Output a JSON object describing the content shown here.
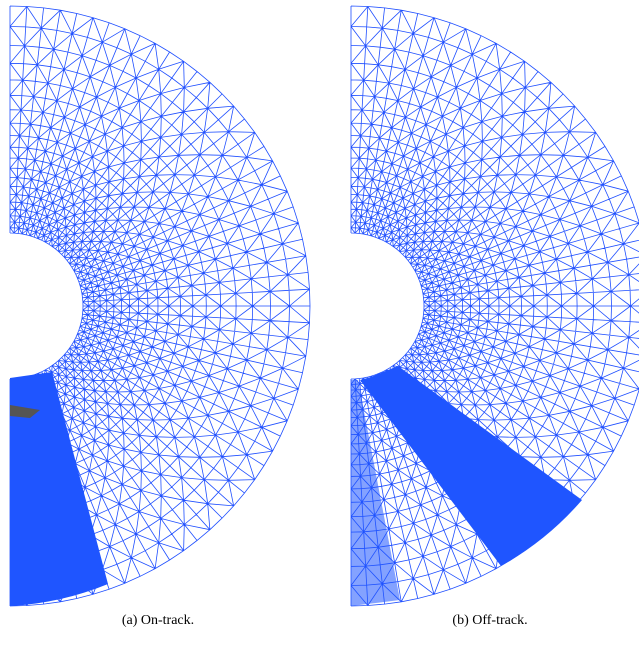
{
  "panels": [
    {
      "caption": "(a) On-track."
    },
    {
      "caption": "(b) Off-track."
    }
  ]
}
